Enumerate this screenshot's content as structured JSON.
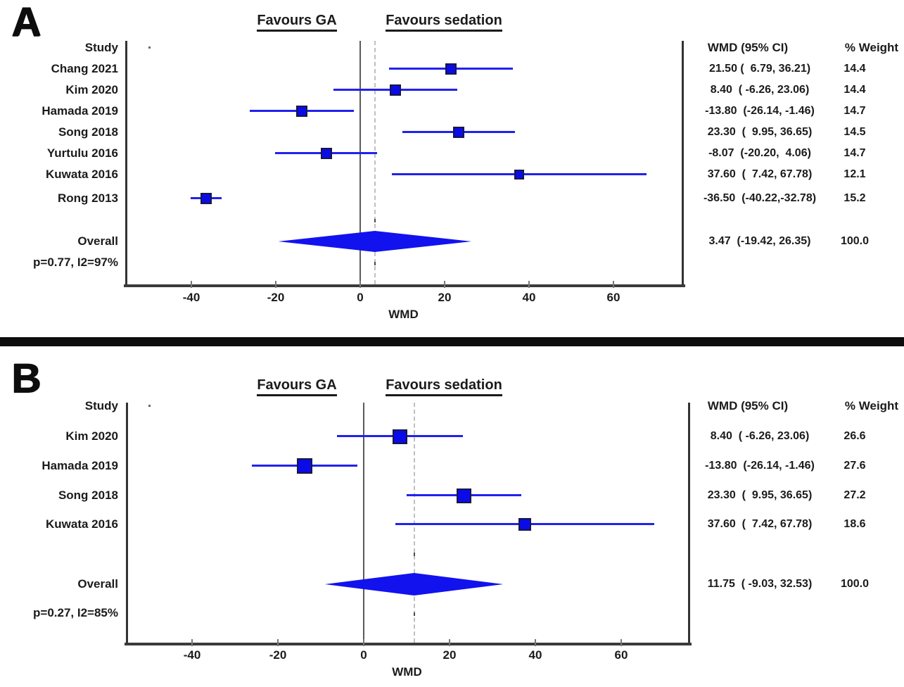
{
  "figure_title": "",
  "colors": {
    "marker_fill": "#0b0be8",
    "marker_border": "#18183f",
    "ci_line": "#2121f0",
    "diamond_fill": "#1212ee",
    "zero_line": "#5a5a5a",
    "overall_dashed_line": "#c0c0c0",
    "plot_border": "#333333",
    "divider_bar": "#0c0c0c",
    "text": "#1b1b1b"
  },
  "chart_data": [
    {
      "type": "scatter",
      "subtype": "forest_plot_meta_analysis",
      "panel_label": "A",
      "favours_left": "Favours GA",
      "favours_right": "Favours sedation",
      "study_column_header": "Study",
      "effect_column_header": "WMD (95% CI)",
      "weight_column_header": "% Weight",
      "xlabel": "WMD",
      "x_ticks": [
        -40,
        -20,
        0,
        20,
        40,
        60
      ],
      "xlim": [
        -55.5,
        76.5
      ],
      "zero_line_x": 0,
      "grid": "off",
      "studies": [
        {
          "label": "Chang 2021",
          "wmd": 21.5,
          "ci_low": 6.79,
          "ci_high": 36.21,
          "weight_pct": 14.4,
          "effect_text": "21.50 (  6.79, 36.21)",
          "weight_text": "14.4"
        },
        {
          "label": "Kim 2020",
          "wmd": 8.4,
          "ci_low": -6.26,
          "ci_high": 23.06,
          "weight_pct": 14.4,
          "effect_text": "8.40  ( -6.26, 23.06)",
          "weight_text": "14.4"
        },
        {
          "label": "Hamada 2019",
          "wmd": -13.8,
          "ci_low": -26.14,
          "ci_high": -1.46,
          "weight_pct": 14.7,
          "effect_text": "-13.80  (-26.14, -1.46)",
          "weight_text": "14.7"
        },
        {
          "label": "Song 2018",
          "wmd": 23.3,
          "ci_low": 9.95,
          "ci_high": 36.65,
          "weight_pct": 14.5,
          "effect_text": "23.30  (  9.95, 36.65)",
          "weight_text": "14.5"
        },
        {
          "label": "Yurtulu 2016",
          "wmd": -8.07,
          "ci_low": -20.2,
          "ci_high": 4.06,
          "weight_pct": 14.7,
          "effect_text": "-8.07  (-20.20,  4.06)",
          "weight_text": "14.7"
        },
        {
          "label": "Kuwata 2016",
          "wmd": 37.6,
          "ci_low": 7.42,
          "ci_high": 67.78,
          "weight_pct": 12.1,
          "effect_text": "37.60  (  7.42, 67.78)",
          "weight_text": "12.1"
        },
        {
          "label": "Rong 2013",
          "wmd": -36.5,
          "ci_low": -40.22,
          "ci_high": -32.78,
          "weight_pct": 15.2,
          "effect_text": "-36.50  (-40.22,-32.78)",
          "weight_text": "15.2"
        }
      ],
      "overall": {
        "label": "Overall",
        "wmd": 3.47,
        "ci_low": -19.42,
        "ci_high": 26.35,
        "weight_pct": 100.0,
        "effect_text": "3.47  (-19.42, 26.35)",
        "weight_text": "100.0"
      },
      "heterogeneity_text": "p=0.77, I2=97%"
    },
    {
      "type": "scatter",
      "subtype": "forest_plot_meta_analysis",
      "panel_label": "B",
      "favours_left": "Favours GA",
      "favours_right": "Favours sedation",
      "study_column_header": "Study",
      "effect_column_header": "WMD (95% CI)",
      "weight_column_header": "% Weight",
      "xlabel": "WMD",
      "x_ticks": [
        -40,
        -20,
        0,
        20,
        40,
        60
      ],
      "xlim": [
        -55.5,
        76.5
      ],
      "zero_line_x": 0,
      "grid": "off",
      "studies": [
        {
          "label": "Kim 2020",
          "wmd": 8.4,
          "ci_low": -6.26,
          "ci_high": 23.06,
          "weight_pct": 26.6,
          "effect_text": "8.40  ( -6.26, 23.06)",
          "weight_text": "26.6"
        },
        {
          "label": "Hamada 2019",
          "wmd": -13.8,
          "ci_low": -26.14,
          "ci_high": -1.46,
          "weight_pct": 27.6,
          "effect_text": "-13.80  (-26.14, -1.46)",
          "weight_text": "27.6"
        },
        {
          "label": "Song 2018",
          "wmd": 23.3,
          "ci_low": 9.95,
          "ci_high": 36.65,
          "weight_pct": 27.2,
          "effect_text": "23.30  (  9.95, 36.65)",
          "weight_text": "27.2"
        },
        {
          "label": "Kuwata 2016",
          "wmd": 37.6,
          "ci_low": 7.42,
          "ci_high": 67.78,
          "weight_pct": 18.6,
          "effect_text": "37.60  (  7.42, 67.78)",
          "weight_text": "18.6"
        }
      ],
      "overall": {
        "label": "Overall",
        "wmd": 11.75,
        "ci_low": -9.03,
        "ci_high": 32.53,
        "weight_pct": 100.0,
        "effect_text": "11.75  ( -9.03, 32.53)",
        "weight_text": "100.0"
      },
      "heterogeneity_text": "p=0.27, I2=85%"
    }
  ]
}
